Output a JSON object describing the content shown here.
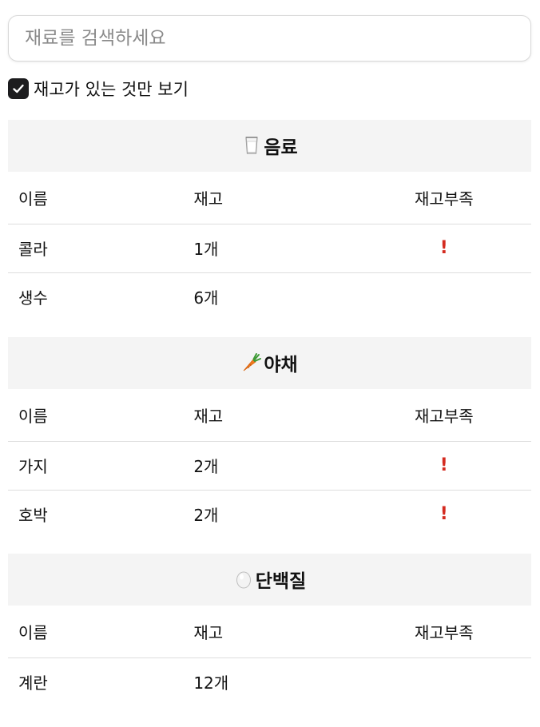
{
  "search": {
    "placeholder": "재료를 검색하세요",
    "value": ""
  },
  "filter": {
    "label": "재고가 있는 것만 보기",
    "checked": true
  },
  "columns": {
    "name": "이름",
    "stock": "재고",
    "low_stock": "재고부족"
  },
  "categories": [
    {
      "icon": "milk-glass-icon",
      "title": "음료",
      "items": [
        {
          "name": "콜라",
          "stock": "1개",
          "low_stock_mark": "!"
        },
        {
          "name": "생수",
          "stock": "6개",
          "low_stock_mark": ""
        }
      ]
    },
    {
      "icon": "carrot-icon",
      "title": "야채",
      "items": [
        {
          "name": "가지",
          "stock": "2개",
          "low_stock_mark": "!"
        },
        {
          "name": "호박",
          "stock": "2개",
          "low_stock_mark": "!"
        }
      ]
    },
    {
      "icon": "egg-icon",
      "title": "단백질",
      "items": [
        {
          "name": "계란",
          "stock": "12개",
          "low_stock_mark": ""
        }
      ]
    }
  ],
  "colors": {
    "accent": "#1c1c1e",
    "alert": "#d42b20",
    "category_bg": "#f4f4f4"
  }
}
